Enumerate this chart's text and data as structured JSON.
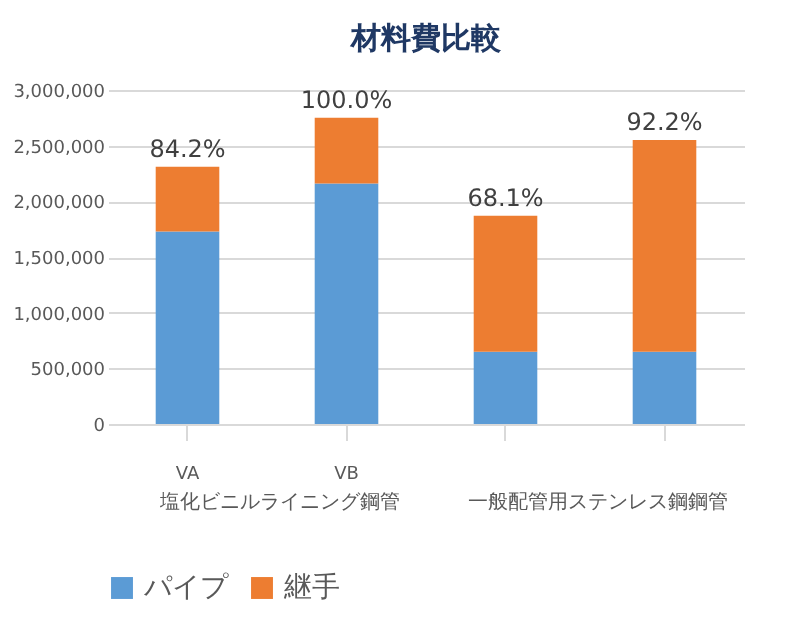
{
  "chart_data": {
    "type": "bar",
    "title": "材料費比較",
    "stacked": true,
    "categories": [
      "VA",
      "VB",
      null,
      null
    ],
    "series": [
      {
        "name": "パイプ",
        "color": "#5b9bd5",
        "values": [
          1730000,
          2160000,
          650000,
          650000
        ]
      },
      {
        "name": "継手",
        "color": "#ed7d31",
        "values": [
          580000,
          590000,
          1220000,
          1900000
        ]
      }
    ],
    "annotations": [
      {
        "text": "84.2%",
        "x": "VA",
        "y": 2310000
      },
      {
        "text": "100.0%",
        "x": "VB",
        "y": 2750000
      },
      {
        "text": "68.1%",
        "y": 1870000
      },
      {
        "text": "92.2%",
        "y": 2550000
      },
      "塩化ビニルライニング鋼管",
      "一般配管用ステンレス鋼鋼管"
    ],
    "ylim": [
      0,
      3000000
    ],
    "yticks": [
      0,
      {
        "value": 500000,
        "label": "500,000"
      },
      {
        "value": 1000000,
        "label": "1,000,000"
      },
      {
        "value": 1500000,
        "label": "1,500,000"
      },
      {
        "value": 2000000,
        "label": "2,000,000"
      },
      {
        "value": 2500000,
        "label": "2,500,000"
      },
      {
        "value": 3000000,
        "label": "3,000,000"
      }
    ],
    "grid": "y",
    "legend": "bottom"
  }
}
